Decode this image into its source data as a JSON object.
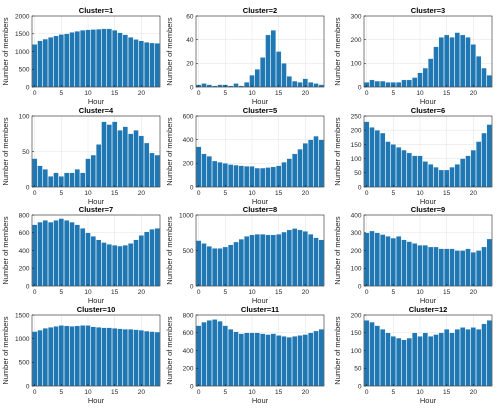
{
  "figure": {
    "bar_color": "#1f77b4",
    "axis_color": "#262626",
    "grid_color": "#e6e6e6",
    "bar_edge_color": "#ffffff"
  },
  "chart_data": [
    {
      "type": "bar",
      "title": "Cluster=1",
      "xlabel": "Hour",
      "ylabel": "Number of members",
      "x": [
        0,
        1,
        2,
        3,
        4,
        5,
        6,
        7,
        8,
        9,
        10,
        11,
        12,
        13,
        14,
        15,
        16,
        17,
        18,
        19,
        20,
        21,
        22,
        23
      ],
      "values": [
        1200,
        1300,
        1350,
        1400,
        1440,
        1480,
        1500,
        1540,
        1570,
        1600,
        1610,
        1620,
        1630,
        1640,
        1640,
        1600,
        1530,
        1470,
        1400,
        1340,
        1300,
        1260,
        1240,
        1230
      ],
      "ylim": [
        0,
        2000
      ],
      "yticks": [
        0,
        500,
        1000,
        1500,
        2000
      ],
      "xticks": [
        0,
        5,
        10,
        15,
        20
      ],
      "xlim": [
        -0.5,
        23.5
      ],
      "grid": true
    },
    {
      "type": "bar",
      "title": "Cluster=2",
      "xlabel": "Hour",
      "ylabel": "Number of members",
      "x": [
        0,
        1,
        2,
        3,
        4,
        5,
        6,
        7,
        8,
        9,
        10,
        11,
        12,
        13,
        14,
        15,
        16,
        17,
        18,
        19,
        20,
        21,
        22,
        23
      ],
      "values": [
        2,
        3,
        2,
        1,
        2,
        2,
        1,
        3,
        1,
        4,
        10,
        15,
        25,
        44,
        48,
        30,
        20,
        9,
        5,
        4,
        7,
        4,
        3,
        2
      ],
      "ylim": [
        0,
        60
      ],
      "yticks": [
        0,
        20,
        40,
        60
      ],
      "xticks": [
        0,
        5,
        10,
        15,
        20
      ],
      "xlim": [
        -0.5,
        23.5
      ],
      "grid": true
    },
    {
      "type": "bar",
      "title": "Cluster=3",
      "xlabel": "Hour",
      "ylabel": "Number of members",
      "x": [
        0,
        1,
        2,
        3,
        4,
        5,
        6,
        7,
        8,
        9,
        10,
        11,
        12,
        13,
        14,
        15,
        16,
        17,
        18,
        19,
        20,
        21,
        22,
        23
      ],
      "values": [
        20,
        30,
        25,
        25,
        20,
        20,
        20,
        30,
        30,
        40,
        60,
        80,
        120,
        170,
        210,
        220,
        210,
        230,
        220,
        210,
        180,
        130,
        80,
        50
      ],
      "ylim": [
        0,
        300
      ],
      "yticks": [
        0,
        100,
        200,
        300
      ],
      "xticks": [
        0,
        5,
        10,
        15,
        20
      ],
      "xlim": [
        -0.5,
        23.5
      ],
      "grid": true
    },
    {
      "type": "bar",
      "title": "Cluster=4",
      "xlabel": "Hour",
      "ylabel": "Number of members",
      "x": [
        0,
        1,
        2,
        3,
        4,
        5,
        6,
        7,
        8,
        9,
        10,
        11,
        12,
        13,
        14,
        15,
        16,
        17,
        18,
        19,
        20,
        21,
        22,
        23
      ],
      "values": [
        40,
        30,
        25,
        15,
        20,
        15,
        20,
        20,
        25,
        20,
        40,
        45,
        60,
        92,
        88,
        92,
        80,
        85,
        75,
        80,
        72,
        62,
        48,
        45
      ],
      "ylim": [
        0,
        100
      ],
      "yticks": [
        0,
        50,
        100
      ],
      "xticks": [
        0,
        5,
        10,
        15,
        20
      ],
      "xlim": [
        -0.5,
        23.5
      ],
      "grid": true
    },
    {
      "type": "bar",
      "title": "Cluster=5",
      "xlabel": "Hour",
      "ylabel": "Number of members",
      "x": [
        0,
        1,
        2,
        3,
        4,
        5,
        6,
        7,
        8,
        9,
        10,
        11,
        12,
        13,
        14,
        15,
        16,
        17,
        18,
        19,
        20,
        21,
        22,
        23
      ],
      "values": [
        340,
        280,
        260,
        220,
        210,
        200,
        190,
        185,
        180,
        175,
        175,
        160,
        160,
        165,
        170,
        180,
        210,
        240,
        280,
        320,
        370,
        400,
        430,
        400
      ],
      "ylim": [
        0,
        600
      ],
      "yticks": [
        0,
        200,
        400,
        600
      ],
      "xticks": [
        0,
        5,
        10,
        15,
        20
      ],
      "xlim": [
        -0.5,
        23.5
      ],
      "grid": true
    },
    {
      "type": "bar",
      "title": "Cluster=6",
      "xlabel": "Hour",
      "ylabel": "Number of members",
      "x": [
        0,
        1,
        2,
        3,
        4,
        5,
        6,
        7,
        8,
        9,
        10,
        11,
        12,
        13,
        14,
        15,
        16,
        17,
        18,
        19,
        20,
        21,
        22,
        23
      ],
      "values": [
        230,
        210,
        200,
        190,
        160,
        150,
        140,
        130,
        120,
        110,
        110,
        90,
        80,
        70,
        60,
        60,
        70,
        80,
        100,
        110,
        130,
        160,
        190,
        220
      ],
      "ylim": [
        0,
        250
      ],
      "yticks": [
        0,
        50,
        100,
        150,
        200,
        250
      ],
      "xticks": [
        0,
        5,
        10,
        15,
        20
      ],
      "xlim": [
        -0.5,
        23.5
      ],
      "grid": true
    },
    {
      "type": "bar",
      "title": "Cluster=7",
      "xlabel": "Hour",
      "ylabel": "Number of members",
      "x": [
        0,
        1,
        2,
        3,
        4,
        5,
        6,
        7,
        8,
        9,
        10,
        11,
        12,
        13,
        14,
        15,
        16,
        17,
        18,
        19,
        20,
        21,
        22,
        23
      ],
      "values": [
        690,
        720,
        740,
        720,
        740,
        760,
        740,
        720,
        690,
        650,
        600,
        560,
        520,
        490,
        470,
        460,
        450,
        460,
        480,
        520,
        570,
        610,
        640,
        650
      ],
      "ylim": [
        0,
        800
      ],
      "yticks": [
        0,
        200,
        400,
        600,
        800
      ],
      "xticks": [
        0,
        5,
        10,
        15,
        20
      ],
      "xlim": [
        -0.5,
        23.5
      ],
      "grid": true
    },
    {
      "type": "bar",
      "title": "Cluster=8",
      "xlabel": "Hour",
      "ylabel": "Number of members",
      "x": [
        0,
        1,
        2,
        3,
        4,
        5,
        6,
        7,
        8,
        9,
        10,
        11,
        12,
        13,
        14,
        15,
        16,
        17,
        18,
        19,
        20,
        21,
        22,
        23
      ],
      "values": [
        640,
        600,
        560,
        530,
        530,
        550,
        580,
        620,
        660,
        700,
        720,
        730,
        730,
        720,
        720,
        730,
        760,
        790,
        810,
        790,
        770,
        730,
        680,
        650
      ],
      "ylim": [
        0,
        1000
      ],
      "yticks": [
        0,
        500,
        1000
      ],
      "xticks": [
        0,
        5,
        10,
        15,
        20
      ],
      "xlim": [
        -0.5,
        23.5
      ],
      "grid": true
    },
    {
      "type": "bar",
      "title": "Cluster=9",
      "xlabel": "Hour",
      "ylabel": "Number of members",
      "x": [
        0,
        1,
        2,
        3,
        4,
        5,
        6,
        7,
        8,
        9,
        10,
        11,
        12,
        13,
        14,
        15,
        16,
        17,
        18,
        19,
        20,
        21,
        22,
        23
      ],
      "values": [
        300,
        310,
        300,
        290,
        280,
        270,
        280,
        260,
        250,
        240,
        230,
        230,
        220,
        220,
        210,
        210,
        210,
        200,
        200,
        210,
        190,
        200,
        220,
        265
      ],
      "ylim": [
        0,
        400
      ],
      "yticks": [
        0,
        100,
        200,
        300,
        400
      ],
      "xticks": [
        0,
        5,
        10,
        15,
        20
      ],
      "xlim": [
        -0.5,
        23.5
      ],
      "grid": true
    },
    {
      "type": "bar",
      "title": "Cluster=10",
      "xlabel": "Hour",
      "ylabel": "Number of members",
      "x": [
        0,
        1,
        2,
        3,
        4,
        5,
        6,
        7,
        8,
        9,
        10,
        11,
        12,
        13,
        14,
        15,
        16,
        17,
        18,
        19,
        20,
        21,
        22,
        23
      ],
      "values": [
        1150,
        1180,
        1220,
        1240,
        1260,
        1280,
        1270,
        1260,
        1270,
        1280,
        1280,
        1250,
        1240,
        1230,
        1230,
        1220,
        1210,
        1200,
        1200,
        1190,
        1180,
        1160,
        1150,
        1140
      ],
      "ylim": [
        0,
        1500
      ],
      "yticks": [
        0,
        500,
        1000,
        1500
      ],
      "xticks": [
        0,
        5,
        10,
        15,
        20
      ],
      "xlim": [
        -0.5,
        23.5
      ],
      "grid": true
    },
    {
      "type": "bar",
      "title": "Cluster=11",
      "xlabel": "Hour",
      "ylabel": "Number of members",
      "x": [
        0,
        1,
        2,
        3,
        4,
        5,
        6,
        7,
        8,
        9,
        10,
        11,
        12,
        13,
        14,
        15,
        16,
        17,
        18,
        19,
        20,
        21,
        22,
        23
      ],
      "values": [
        680,
        720,
        740,
        750,
        730,
        680,
        640,
        610,
        590,
        600,
        600,
        600,
        590,
        580,
        590,
        570,
        560,
        550,
        560,
        570,
        580,
        600,
        620,
        640
      ],
      "ylim": [
        0,
        800
      ],
      "yticks": [
        0,
        200,
        400,
        600,
        800
      ],
      "xticks": [
        0,
        5,
        10,
        15,
        20
      ],
      "xlim": [
        -0.5,
        23.5
      ],
      "grid": true
    },
    {
      "type": "bar",
      "title": "Cluster=12",
      "xlabel": "Hour",
      "ylabel": "Number of members",
      "x": [
        0,
        1,
        2,
        3,
        4,
        5,
        6,
        7,
        8,
        9,
        10,
        11,
        12,
        13,
        14,
        15,
        16,
        17,
        18,
        19,
        20,
        21,
        22,
        23
      ],
      "values": [
        185,
        180,
        170,
        160,
        150,
        140,
        135,
        130,
        135,
        150,
        140,
        150,
        140,
        145,
        150,
        160,
        150,
        160,
        165,
        160,
        165,
        160,
        175,
        185
      ],
      "ylim": [
        0,
        200
      ],
      "yticks": [
        0,
        50,
        100,
        150,
        200
      ],
      "xticks": [
        0,
        5,
        10,
        15,
        20
      ],
      "xlim": [
        -0.5,
        23.5
      ],
      "grid": true
    }
  ]
}
